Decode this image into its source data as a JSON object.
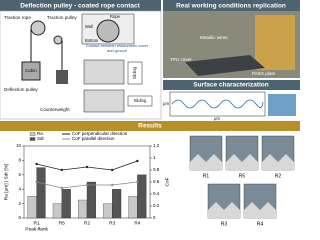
{
  "left_panel": {
    "title": "Deflection pulley - coated rope contact",
    "traction_rope": "Traction rope",
    "traction_pulley": "Traction pulley",
    "cabin": "Cabin",
    "deflection_pulley": "Deflection pulley",
    "counterweight": "Counterweight",
    "rope": "Rope",
    "wall": "Wall",
    "bottom": "Bottom",
    "contact": "Contact between elastomeric cover and groove",
    "sliding": "Sliding"
  },
  "replication": {
    "title": "Real working conditions replication",
    "metallic_wires": "Metallic wires",
    "tpu_cover": "TPU cover",
    "plate": "PA6G plate"
  },
  "surface": {
    "title": "Surface characterization",
    "x_label": "μm",
    "y_label": "μm"
  },
  "results": {
    "title": "Results",
    "chart": {
      "type": "bar",
      "categories": [
        "R1",
        "R5",
        "R2",
        "R3",
        "R4"
      ],
      "x_label": "Peak-flank",
      "y_label": "Ra [μm] | Sdr [%]",
      "y2_label": "CoF",
      "ylim": [
        0,
        10
      ],
      "yticks": [
        0,
        2,
        4,
        6,
        8,
        10
      ],
      "y2lim": [
        0,
        1.2
      ],
      "y2ticks": [
        0,
        0.2,
        0.4,
        0.6,
        0.8,
        1,
        1.2
      ],
      "series": [
        {
          "name": "Ra",
          "color": "#c8c8c8",
          "values": [
            3,
            2,
            2.5,
            2,
            3
          ]
        },
        {
          "name": "Sdr",
          "color": "#555555",
          "values": [
            7,
            4,
            5,
            4,
            6
          ]
        },
        {
          "name": "CoF perpendicular direction",
          "color": "#222222",
          "axis": "y2",
          "values": [
            0.9,
            0.8,
            0.85,
            0.8,
            0.95
          ]
        },
        {
          "name": "CoF parallel direction",
          "color": "#888888",
          "axis": "y2",
          "values": [
            0.6,
            0.5,
            0.55,
            0.55,
            0.6
          ]
        }
      ]
    },
    "images": [
      "R1",
      "R5",
      "R2",
      "R3",
      "R4"
    ]
  }
}
